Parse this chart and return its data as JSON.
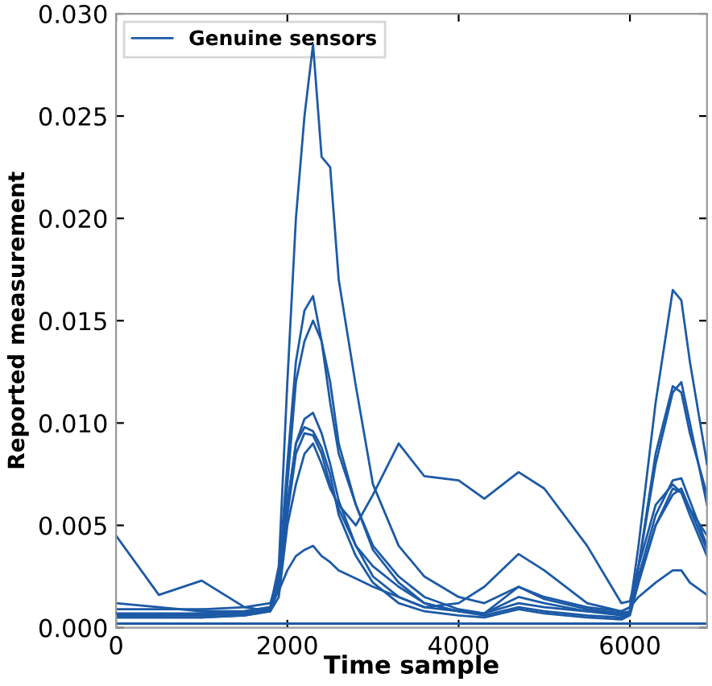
{
  "chart_data": {
    "type": "line",
    "xlabel": "Time sample",
    "ylabel": "Reported measurement",
    "x": [
      0,
      500,
      1000,
      1500,
      1800,
      1900,
      2000,
      2100,
      2200,
      2300,
      2400,
      2500,
      2600,
      2800,
      3000,
      3300,
      3600,
      4000,
      4300,
      4700,
      5000,
      5500,
      5900,
      6000,
      6100,
      6300,
      6500,
      6600,
      6700,
      6900
    ],
    "series": [
      {
        "name": "Genuine sensors",
        "color": "#1c5aa6",
        "values": [
          0.0007,
          0.0007,
          0.0007,
          0.0008,
          0.001,
          0.003,
          0.012,
          0.02,
          0.025,
          0.0285,
          0.023,
          0.0225,
          0.017,
          0.0118,
          0.007,
          0.004,
          0.0025,
          0.0015,
          0.0012,
          0.002,
          0.0015,
          0.001,
          0.0008,
          0.001,
          0.004,
          0.011,
          0.0165,
          0.016,
          0.013,
          0.008
        ]
      },
      {
        "color": "#1c5aa6",
        "values": [
          0.0006,
          0.0006,
          0.0006,
          0.0007,
          0.0009,
          0.0025,
          0.008,
          0.013,
          0.0155,
          0.0162,
          0.014,
          0.011,
          0.0085,
          0.006,
          0.004,
          0.0025,
          0.0015,
          0.0009,
          0.0007,
          0.0015,
          0.0012,
          0.0008,
          0.0006,
          0.0008,
          0.003,
          0.008,
          0.0115,
          0.012,
          0.01,
          0.006
        ]
      },
      {
        "color": "#1c5aa6",
        "values": [
          0.0005,
          0.0005,
          0.0005,
          0.0006,
          0.0008,
          0.002,
          0.007,
          0.012,
          0.014,
          0.015,
          0.014,
          0.012,
          0.009,
          0.006,
          0.0038,
          0.0022,
          0.0012,
          0.0008,
          0.0007,
          0.002,
          0.0014,
          0.0009,
          0.0007,
          0.0008,
          0.003,
          0.0085,
          0.0118,
          0.0115,
          0.0095,
          0.0065
        ]
      },
      {
        "color": "#1c5aa6",
        "values": [
          0.0009,
          0.0009,
          0.0009,
          0.001,
          0.0012,
          0.0025,
          0.006,
          0.009,
          0.0102,
          0.0105,
          0.0095,
          0.008,
          0.0062,
          0.004,
          0.0025,
          0.0015,
          0.001,
          0.0008,
          0.0007,
          0.0012,
          0.001,
          0.0008,
          0.0007,
          0.0008,
          0.0025,
          0.0055,
          0.0072,
          0.0073,
          0.0062,
          0.004
        ]
      },
      {
        "color": "#1c5aa6",
        "values": [
          0.0006,
          0.0006,
          0.0007,
          0.0007,
          0.0009,
          0.0022,
          0.0055,
          0.0085,
          0.0095,
          0.0094,
          0.0085,
          0.007,
          0.0058,
          0.004,
          0.003,
          0.002,
          0.0012,
          0.0008,
          0.0006,
          0.001,
          0.0008,
          0.0006,
          0.0005,
          0.0007,
          0.0022,
          0.005,
          0.0068,
          0.0066,
          0.0055,
          0.0035
        ]
      },
      {
        "color": "#1c5aa6",
        "values": [
          0.0045,
          0.0016,
          0.0023,
          0.001,
          0.0008,
          0.0015,
          0.005,
          0.007,
          0.0085,
          0.009,
          0.008,
          0.0068,
          0.006,
          0.005,
          0.0065,
          0.009,
          0.0074,
          0.0072,
          0.0063,
          0.0076,
          0.0068,
          0.004,
          0.0012,
          0.0013,
          0.003,
          0.006,
          0.007,
          0.0066,
          0.0058,
          0.0045
        ]
      },
      {
        "color": "#1c5aa6",
        "values": [
          0.0012,
          0.001,
          0.0008,
          0.0008,
          0.001,
          0.0018,
          0.0028,
          0.0035,
          0.0038,
          0.004,
          0.0035,
          0.0032,
          0.0028,
          0.0024,
          0.002,
          0.0015,
          0.001,
          0.0012,
          0.002,
          0.0036,
          0.0028,
          0.0012,
          0.0008,
          0.001,
          0.0015,
          0.0022,
          0.0028,
          0.0028,
          0.0022,
          0.0016
        ]
      },
      {
        "color": "#1c5aa6",
        "values": [
          0.0005,
          0.0005,
          0.0005,
          0.0006,
          0.0008,
          0.002,
          0.006,
          0.009,
          0.0098,
          0.0096,
          0.0088,
          0.0075,
          0.0055,
          0.0035,
          0.0022,
          0.0012,
          0.0008,
          0.0006,
          0.0005,
          0.0009,
          0.0007,
          0.0005,
          0.0004,
          0.0006,
          0.0022,
          0.005,
          0.0065,
          0.0068,
          0.0058,
          0.0038
        ]
      },
      {
        "color": "#1c5aa6",
        "values": [
          0.0002,
          0.0002,
          0.0002,
          0.0002,
          0.0002,
          0.0002,
          0.0002,
          0.0002,
          0.0002,
          0.0002,
          0.0002,
          0.0002,
          0.0002,
          0.0002,
          0.0002,
          0.0002,
          0.0002,
          0.0002,
          0.0002,
          0.0002,
          0.0002,
          0.0002,
          0.0002,
          0.0002,
          0.0002,
          0.0002,
          0.0002,
          0.0002,
          0.0002,
          0.0002
        ]
      }
    ],
    "xlim": [
      0,
      6900
    ],
    "xticks": [
      0,
      2000,
      4000,
      6000
    ],
    "ylim": [
      0,
      0.03
    ],
    "yticks": [
      {
        "value": 0,
        "label": "0.000"
      },
      {
        "value": 0.005,
        "label": "0.005"
      },
      {
        "value": 0.01,
        "label": "0.010"
      },
      {
        "value": 0.015,
        "label": "0.015"
      },
      {
        "value": 0.02,
        "label": "0.020"
      },
      {
        "value": 0.025,
        "label": "0.025"
      },
      {
        "value": 0.03,
        "label": "0.030"
      }
    ],
    "legend": "top left",
    "grid": false,
    "marker": "none",
    "line_style": "solid"
  }
}
